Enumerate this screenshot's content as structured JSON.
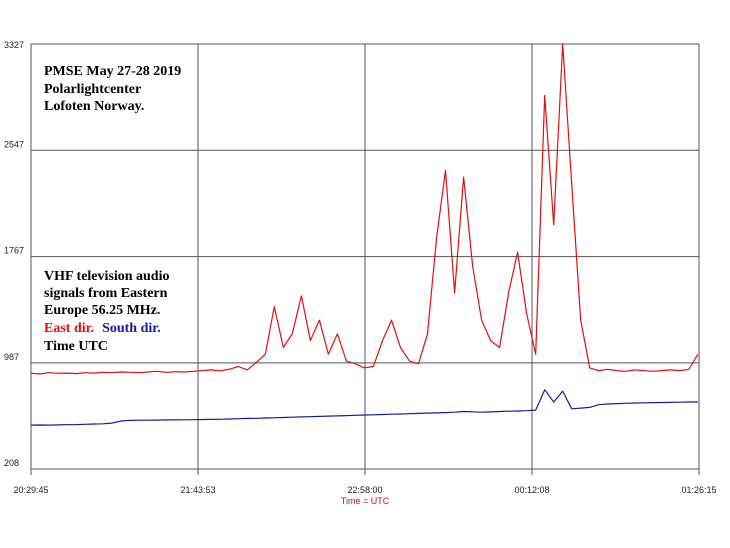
{
  "chart_data": {
    "type": "line",
    "annotations": [
      "PMSE May 27-28 2019",
      "Polarlightcenter",
      "Lofoten Norway.",
      "VHF television audio",
      "signals from Eastern",
      "Europe 56.25 MHz.",
      "Time UTC"
    ],
    "xlabel": "Time = UTC",
    "x": [
      0,
      4,
      8,
      12,
      16,
      20,
      24,
      28,
      32,
      36,
      40,
      44,
      48,
      52,
      56,
      60,
      64,
      68,
      72,
      76,
      80,
      84,
      88,
      92,
      96,
      100,
      104,
      108,
      112,
      116,
      120,
      124,
      128,
      132,
      136,
      140,
      144,
      148,
      152,
      156,
      160,
      164,
      168,
      172,
      176,
      180,
      184,
      188,
      192,
      196,
      200,
      204,
      208,
      212,
      216,
      220,
      224,
      228,
      232,
      236,
      240,
      244,
      248,
      252,
      256,
      260,
      264,
      268,
      272,
      276,
      280,
      284,
      288,
      292,
      296
    ],
    "series": [
      {
        "name": "East dir.",
        "color": "#e01010",
        "values": [
          910,
          905,
          915,
          910,
          912,
          908,
          915,
          912,
          918,
          915,
          920,
          918,
          915,
          920,
          925,
          918,
          922,
          920,
          925,
          930,
          935,
          928,
          940,
          960,
          935,
          990,
          1050,
          1400,
          1100,
          1200,
          1480,
          1150,
          1300,
          1050,
          1200,
          1000,
          980,
          950,
          960,
          1150,
          1300,
          1100,
          1000,
          980,
          1200,
          1900,
          2400,
          1500,
          2350,
          1700,
          1300,
          1150,
          1100,
          1500,
          1800,
          1350,
          1050,
          2950,
          2000,
          3327,
          2300,
          1300,
          950,
          930,
          940,
          930,
          925,
          935,
          930,
          925,
          930,
          935,
          930,
          940,
          1050
        ]
      },
      {
        "name": "South dir.",
        "color": "#1a1a9e",
        "values": [
          530,
          531,
          530,
          532,
          533,
          534,
          536,
          538,
          540,
          545,
          560,
          565,
          566,
          566,
          567,
          568,
          568,
          569,
          570,
          571,
          572,
          573,
          575,
          577,
          579,
          580,
          582,
          584,
          586,
          588,
          590,
          592,
          594,
          596,
          598,
          600,
          602,
          604,
          606,
          608,
          610,
          612,
          614,
          616,
          618,
          620,
          622,
          625,
          630,
          628,
          625,
          627,
          630,
          632,
          634,
          636,
          640,
          790,
          700,
          780,
          650,
          655,
          660,
          680,
          685,
          688,
          690,
          692,
          694,
          695,
          696,
          697,
          698,
          700,
          700
        ]
      }
    ],
    "xlim": [
      0,
      296.5
    ],
    "xticks": [
      {
        "value": 0,
        "label": "20:29:45"
      },
      {
        "value": 74.133,
        "label": "21:43:53"
      },
      {
        "value": 148.25,
        "label": "22:58:00"
      },
      {
        "value": 222.383,
        "label": "00:12:08"
      },
      {
        "value": 296.5,
        "label": "01:26:15"
      }
    ],
    "ylim": [
      208,
      3327
    ],
    "yticks": [
      208,
      987,
      1767,
      2547,
      3327
    ],
    "grid": true
  }
}
